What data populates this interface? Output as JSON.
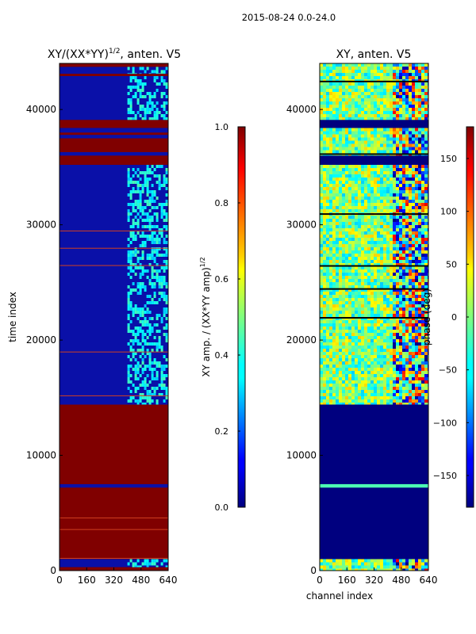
{
  "suptitle": "2015-08-24 0.0-24.0",
  "chart_data": [
    {
      "type": "heatmap",
      "title_main": "XY/(XX*YY)",
      "title_sup": "1/2",
      "title_tail": ", anten. V5",
      "xlabel": "",
      "ylabel": "time index",
      "xlim": [
        0,
        640
      ],
      "ylim": [
        0,
        44000
      ],
      "xticks": [
        0,
        160,
        320,
        480,
        640
      ],
      "yticks": [
        0,
        10000,
        20000,
        30000,
        40000
      ],
      "colorbar": {
        "label_main": "XY amp. / (XX*YY amp)",
        "label_sup": "1/2",
        "range": [
          0.0,
          1.0
        ],
        "ticks": [
          "0.0",
          "0.2",
          "0.4",
          "0.6",
          "0.8",
          "1.0"
        ],
        "tick_values": [
          0.0,
          0.2,
          0.4,
          0.6,
          0.8,
          1.0
        ],
        "colormap": "jet"
      },
      "saturated_bands": [
        [
          0,
          300
        ],
        [
          1000,
          7200
        ],
        [
          7500,
          14400
        ],
        [
          35200,
          36000
        ],
        [
          36300,
          37500
        ],
        [
          37800,
          38000
        ],
        [
          38400,
          39100
        ],
        [
          42900,
          43100
        ],
        [
          43700,
          44000
        ]
      ],
      "low_bands": [
        [
          300,
          1000
        ],
        [
          7200,
          7500
        ],
        [
          14400,
          35200
        ],
        [
          36000,
          36300
        ],
        [
          37500,
          37800
        ],
        [
          38000,
          38400
        ],
        [
          39100,
          42900
        ],
        [
          43100,
          43700
        ]
      ],
      "active_channels": [
        [
          400,
          640
        ]
      ]
    },
    {
      "type": "heatmap",
      "title_main": "XY, anten. V5",
      "xlabel": "channel index",
      "ylabel": "",
      "xlim": [
        0,
        640
      ],
      "ylim": [
        0,
        44000
      ],
      "xticks": [
        0,
        160,
        320,
        480,
        640
      ],
      "yticks": [
        0,
        10000,
        20000,
        30000,
        40000
      ],
      "colorbar": {
        "label_main": "phase (deg)",
        "range": [
          -180,
          180
        ],
        "ticks": [
          "−150",
          "−100",
          "−50",
          "0",
          "50",
          "100",
          "150"
        ],
        "tick_values": [
          -150,
          -100,
          -50,
          0,
          50,
          100,
          150
        ],
        "colormap": "jet"
      },
      "masked_bands": [
        [
          1000,
          7200
        ],
        [
          7500,
          14400
        ],
        [
          35200,
          36000
        ],
        [
          38400,
          39100
        ]
      ],
      "active_bands": [
        [
          0,
          1000
        ],
        [
          7200,
          7500
        ],
        [
          14400,
          35200
        ],
        [
          36000,
          38400
        ],
        [
          39100,
          44000
        ]
      ],
      "vertical_stripe_channels": [
        400,
        640
      ]
    }
  ]
}
